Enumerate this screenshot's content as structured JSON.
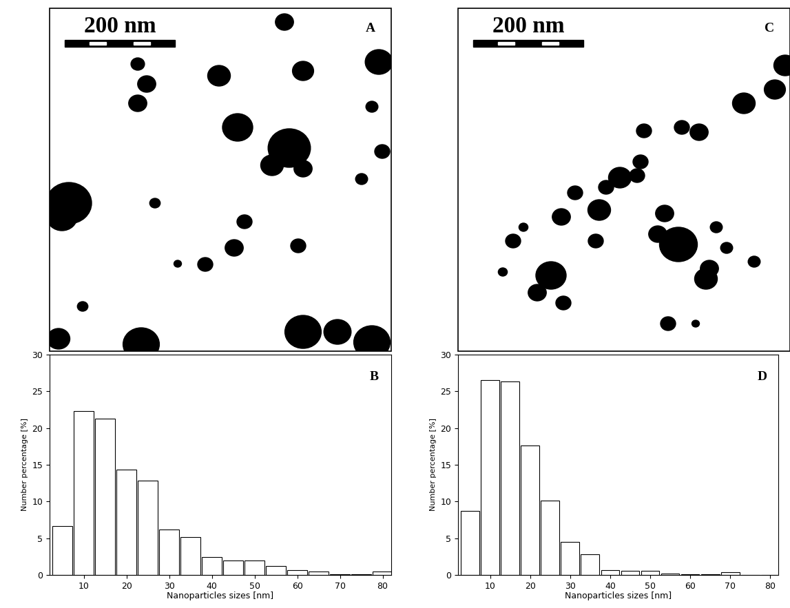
{
  "chart_data": [
    {
      "type": "bar",
      "annotation": "B",
      "x": [
        5,
        10,
        15,
        20,
        25,
        30,
        35,
        40,
        45,
        50,
        55,
        60,
        65,
        70,
        75,
        80
      ],
      "values": [
        6.7,
        22.3,
        21.3,
        14.3,
        12.8,
        6.2,
        5.2,
        2.4,
        2.0,
        2.0,
        1.2,
        0.7,
        0.5,
        0.1,
        0.1,
        0.5
      ],
      "color": "#ffffff",
      "xlabel": "Nanoparticles sizes [nm]",
      "ylabel": "Number percentage [%]",
      "xlim": [
        2,
        82
      ],
      "xticks": [
        10,
        20,
        30,
        40,
        50,
        60,
        70,
        80
      ],
      "ylim": [
        0,
        30
      ],
      "yticks": [
        0,
        5,
        10,
        15,
        20,
        25,
        30
      ]
    },
    {
      "type": "bar",
      "annotation": "D",
      "x": [
        5,
        10,
        15,
        20,
        25,
        30,
        35,
        40,
        45,
        50,
        55,
        60,
        65,
        70,
        75,
        80
      ],
      "values": [
        8.7,
        26.5,
        26.3,
        17.6,
        10.1,
        4.5,
        2.8,
        0.7,
        0.6,
        0.6,
        0.2,
        0.1,
        0.1,
        0.4,
        0.0,
        0.0
      ],
      "color": "#ffffff",
      "xlabel": "Nanoparticles sizes [nm]",
      "ylabel": "Number percentage [%]",
      "xlim": [
        2,
        82
      ],
      "xticks": [
        10,
        20,
        30,
        40,
        50,
        60,
        70,
        80
      ],
      "ylim": [
        0,
        30
      ],
      "yticks": [
        0,
        5,
        10,
        15,
        20,
        25,
        30
      ]
    }
  ],
  "images": [
    {
      "annotation": "A",
      "scale_bar": "200 nm"
    },
    {
      "annotation": "C",
      "scale_bar": "200 nm"
    }
  ]
}
